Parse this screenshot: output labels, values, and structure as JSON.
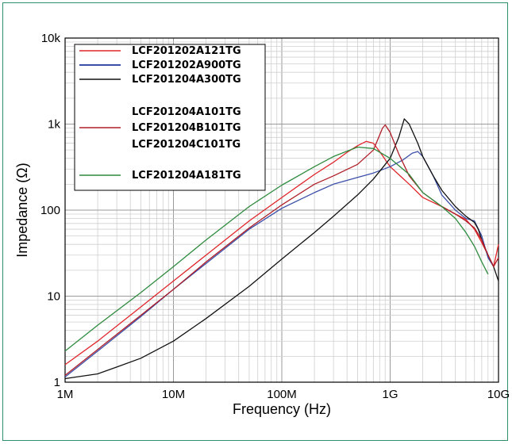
{
  "chart_data": {
    "type": "line",
    "title": "",
    "xlabel": "Frequency (Hz)",
    "ylabel": "Impedance (Ω)",
    "xscale": "log",
    "yscale": "log",
    "xlim": [
      1000000,
      10000000000
    ],
    "ylim": [
      1,
      10000
    ],
    "grid": true,
    "legend_position": "top-left",
    "x_ticks": [
      {
        "value": 1000000,
        "label": "1M"
      },
      {
        "value": 10000000,
        "label": "10M"
      },
      {
        "value": 100000000,
        "label": "100M"
      },
      {
        "value": 1000000000,
        "label": "1G"
      },
      {
        "value": 10000000000,
        "label": "10G"
      }
    ],
    "y_ticks": [
      {
        "value": 1,
        "label": "1"
      },
      {
        "value": 10,
        "label": "10"
      },
      {
        "value": 100,
        "label": "100"
      },
      {
        "value": 1000,
        "label": "1k"
      },
      {
        "value": 10000,
        "label": "10k"
      }
    ],
    "legend": [
      {
        "label": "LCF201202A121TG",
        "color": "#e0262b"
      },
      {
        "label": "LCF201202A900TG",
        "color": "#3b4fa8"
      },
      {
        "label": "LCF201204A300TG",
        "color": "#111111"
      },
      {
        "label": "LCF201204A101TG",
        "color": "#b01e28"
      },
      {
        "label": "LCF201204B101TG",
        "color": "#b01e28"
      },
      {
        "label": "LCF201204C101TG",
        "color": "#b01e28"
      },
      {
        "label": "LCF201204A181TG",
        "color": "#2e8b3e"
      }
    ],
    "series": [
      {
        "name": "LCF201202A121TG",
        "color": "#e0262b",
        "points": [
          [
            1000000,
            1.6
          ],
          [
            2000000,
            3.0
          ],
          [
            5000000,
            7.5
          ],
          [
            10000000,
            15
          ],
          [
            20000000,
            30
          ],
          [
            50000000,
            75
          ],
          [
            100000000,
            140
          ],
          [
            200000000,
            260
          ],
          [
            300000000,
            360
          ],
          [
            400000000,
            470
          ],
          [
            500000000,
            560
          ],
          [
            600000000,
            630
          ],
          [
            700000000,
            600
          ],
          [
            800000000,
            480
          ],
          [
            1000000000,
            320
          ],
          [
            1500000000,
            200
          ],
          [
            2000000000,
            140
          ],
          [
            3000000000,
            110
          ],
          [
            4000000000,
            90
          ],
          [
            5000000000,
            78
          ],
          [
            6000000000,
            60
          ],
          [
            7000000000,
            42
          ],
          [
            8000000000,
            30
          ],
          [
            9000000000,
            22
          ],
          [
            10000000000,
            40
          ]
        ]
      },
      {
        "name": "LCF201202A900TG",
        "color": "#3b4fa8",
        "points": [
          [
            1000000,
            1.15
          ],
          [
            2000000,
            2.3
          ],
          [
            5000000,
            5.8
          ],
          [
            10000000,
            12
          ],
          [
            20000000,
            24
          ],
          [
            50000000,
            60
          ],
          [
            100000000,
            105
          ],
          [
            200000000,
            160
          ],
          [
            300000000,
            200
          ],
          [
            500000000,
            240
          ],
          [
            700000000,
            270
          ],
          [
            1000000000,
            320
          ],
          [
            1300000000,
            380
          ],
          [
            1600000000,
            460
          ],
          [
            1800000000,
            480
          ],
          [
            2000000000,
            420
          ],
          [
            2500000000,
            250
          ],
          [
            3000000000,
            150
          ],
          [
            4000000000,
            100
          ],
          [
            5000000000,
            80
          ],
          [
            6000000000,
            75
          ],
          [
            7000000000,
            50
          ],
          [
            8000000000,
            28
          ],
          [
            9000000000,
            22
          ]
        ]
      },
      {
        "name": "LCF201204A300TG",
        "color": "#111111",
        "points": [
          [
            1000000,
            1.1
          ],
          [
            2000000,
            1.25
          ],
          [
            3000000,
            1.5
          ],
          [
            5000000,
            1.9
          ],
          [
            10000000,
            3.0
          ],
          [
            20000000,
            5.5
          ],
          [
            50000000,
            13
          ],
          [
            100000000,
            27
          ],
          [
            200000000,
            55
          ],
          [
            300000000,
            85
          ],
          [
            500000000,
            150
          ],
          [
            700000000,
            230
          ],
          [
            1000000000,
            400
          ],
          [
            1200000000,
            700
          ],
          [
            1350000000,
            1150
          ],
          [
            1500000000,
            1000
          ],
          [
            1800000000,
            600
          ],
          [
            2000000000,
            420
          ],
          [
            2500000000,
            250
          ],
          [
            3000000000,
            170
          ],
          [
            4000000000,
            110
          ],
          [
            5000000000,
            85
          ],
          [
            6000000000,
            72
          ],
          [
            6500000000,
            60
          ],
          [
            7000000000,
            45
          ],
          [
            8000000000,
            30
          ],
          [
            9000000000,
            22
          ],
          [
            10000000000,
            15
          ]
        ]
      },
      {
        "name": "LCF201204A101TG",
        "color": "#b01e28",
        "points": [
          [
            1000000,
            1.2
          ],
          [
            2000000,
            2.4
          ],
          [
            5000000,
            6.0
          ],
          [
            10000000,
            12
          ],
          [
            20000000,
            25
          ],
          [
            50000000,
            62
          ],
          [
            100000000,
            115
          ],
          [
            200000000,
            200
          ],
          [
            300000000,
            250
          ],
          [
            500000000,
            340
          ],
          [
            700000000,
            500
          ],
          [
            850000000,
            900
          ],
          [
            900000000,
            980
          ],
          [
            1000000000,
            800
          ],
          [
            1200000000,
            450
          ],
          [
            1500000000,
            250
          ],
          [
            2000000000,
            160
          ],
          [
            3000000000,
            110
          ],
          [
            4000000000,
            90
          ],
          [
            5000000000,
            75
          ],
          [
            6000000000,
            62
          ],
          [
            7000000000,
            45
          ],
          [
            8000000000,
            30
          ],
          [
            9000000000,
            22
          ],
          [
            10000000000,
            28
          ]
        ]
      },
      {
        "name": "LCF201204A181TG",
        "color": "#2e8b3e",
        "points": [
          [
            1000000,
            2.3
          ],
          [
            2000000,
            4.6
          ],
          [
            5000000,
            11
          ],
          [
            10000000,
            22
          ],
          [
            20000000,
            45
          ],
          [
            50000000,
            110
          ],
          [
            100000000,
            195
          ],
          [
            200000000,
            320
          ],
          [
            300000000,
            420
          ],
          [
            500000000,
            540
          ],
          [
            700000000,
            520
          ],
          [
            1000000000,
            400
          ],
          [
            1500000000,
            260
          ],
          [
            2000000000,
            160
          ],
          [
            3000000000,
            110
          ],
          [
            4000000000,
            80
          ],
          [
            5000000000,
            55
          ],
          [
            6000000000,
            38
          ],
          [
            7000000000,
            25
          ],
          [
            8000000000,
            18
          ]
        ]
      }
    ]
  }
}
